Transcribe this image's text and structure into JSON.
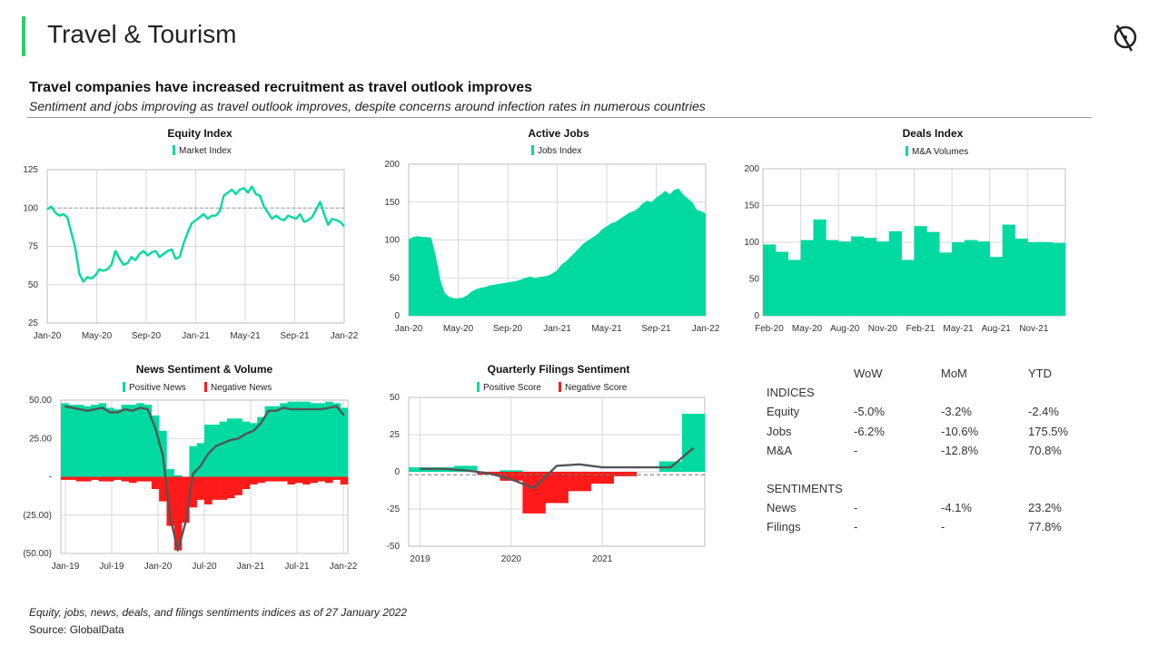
{
  "header": {
    "title": "Travel & Tourism",
    "headline": "Travel companies have increased recruitment as travel outlook improves",
    "subheadline": "Sentiment and jobs improving as travel outlook improves, despite concerns around infection rates in numerous countries"
  },
  "colors": {
    "accent": "#2ecc71",
    "positive": "#00d9a0",
    "negative": "#ff1a1a",
    "line": "#555555",
    "grid": "#d9d9d9"
  },
  "chart_data": [
    {
      "id": "equity",
      "type": "line",
      "title": "Equity Index",
      "legend": [
        "Market Index"
      ],
      "ylim": [
        25,
        125
      ],
      "yticks": [
        "125",
        "100",
        "75",
        "50",
        "25"
      ],
      "xticks": [
        "Jan-20",
        "May-20",
        "Sep-20",
        "Jan-21",
        "May-21",
        "Sep-21",
        "Jan-22"
      ],
      "reference_line": 100,
      "x_range": [
        "Jan-20",
        "Jan-22"
      ],
      "values": [
        99,
        101,
        97,
        95,
        96,
        94,
        84,
        74,
        57,
        52,
        55,
        54,
        56,
        60,
        59,
        60,
        63,
        72,
        67,
        63,
        64,
        68,
        66,
        70,
        72,
        69,
        71,
        72,
        68,
        70,
        72,
        73,
        67,
        68,
        77,
        84,
        90,
        92,
        94,
        96,
        93,
        95,
        95,
        98,
        108,
        110,
        112,
        109,
        112,
        113,
        110,
        114,
        109,
        108,
        101,
        97,
        93,
        95,
        93,
        92,
        95,
        94,
        93,
        96,
        91,
        92,
        94,
        99,
        104,
        96,
        89,
        93,
        92,
        91,
        88
      ]
    },
    {
      "id": "jobs",
      "type": "area",
      "title": "Active Jobs",
      "legend": [
        "Jobs Index"
      ],
      "ylim": [
        0,
        200
      ],
      "yticks": [
        "200",
        "150",
        "100",
        "50",
        "0"
      ],
      "xticks": [
        "Jan-20",
        "May-20",
        "Sep-20",
        "Jan-21",
        "May-21",
        "Sep-21",
        "Jan-22"
      ],
      "x_range": [
        "Jan-20",
        "Jan-22"
      ],
      "values": [
        101,
        104,
        105,
        104,
        104,
        103,
        80,
        48,
        30,
        25,
        23,
        23,
        24,
        27,
        32,
        35,
        37,
        38,
        40,
        41,
        42,
        43,
        44,
        45,
        46,
        48,
        50,
        52,
        50,
        51,
        52,
        53,
        56,
        60,
        68,
        72,
        78,
        84,
        90,
        96,
        100,
        104,
        108,
        114,
        118,
        122,
        124,
        128,
        132,
        136,
        138,
        142,
        148,
        152,
        150,
        156,
        160,
        165,
        160,
        166,
        168,
        160,
        155,
        150,
        140,
        138,
        135
      ]
    },
    {
      "id": "deals",
      "type": "bar",
      "title": "Deals Index",
      "legend": [
        "M&A Volumes"
      ],
      "ylim": [
        0,
        200
      ],
      "yticks": [
        "200",
        "150",
        "100",
        "50",
        "0"
      ],
      "categories": [
        "Feb-20",
        "Mar-20",
        "Apr-20",
        "May-20",
        "Jun-20",
        "Jul-20",
        "Aug-20",
        "Sep-20",
        "Oct-20",
        "Nov-20",
        "Dec-20",
        "Jan-21",
        "Feb-21",
        "Mar-21",
        "Apr-21",
        "May-21",
        "Jun-21",
        "Jul-21",
        "Aug-21",
        "Sep-21",
        "Oct-21",
        "Nov-21",
        "Dec-21",
        "Jan-22"
      ],
      "xtick_labels": [
        "Feb-20",
        "May-20",
        "Aug-20",
        "Nov-20",
        "Feb-21",
        "May-21",
        "Aug-21",
        "Nov-21"
      ],
      "values": [
        97,
        87,
        76,
        103,
        131,
        103,
        101,
        108,
        106,
        101,
        115,
        76,
        122,
        114,
        86,
        100,
        103,
        101,
        80,
        124,
        105,
        100,
        100,
        99
      ]
    },
    {
      "id": "news",
      "type": "bar",
      "title": "News Sentiment & Volume",
      "legend": [
        "Positive News",
        "Negative News"
      ],
      "ylim": [
        -50,
        50
      ],
      "yticks": [
        "50.00",
        "25.00",
        "-",
        "(25.00)",
        "(50.00)"
      ],
      "xticks": [
        "Jan-19",
        "Jul-19",
        "Jan-20",
        "Jul-20",
        "Jan-21",
        "Jul-21",
        "Jan-22"
      ],
      "x_range": [
        "Jan-19",
        "Jan-22"
      ],
      "series": [
        {
          "name": "Positive News",
          "values": [
            48,
            47,
            47,
            46,
            47,
            48,
            45,
            44,
            47,
            47,
            48,
            47,
            40,
            30,
            5,
            1,
            0,
            20,
            22,
            34,
            34,
            36,
            38,
            38,
            36,
            35,
            39,
            46,
            46,
            48,
            49,
            49,
            49,
            48,
            48,
            49,
            48,
            45
          ]
        },
        {
          "name": "Negative News",
          "values": [
            -2,
            -2,
            -3,
            -3,
            -2,
            -3,
            -3,
            -2,
            -3,
            -4,
            -3,
            -3,
            -8,
            -16,
            -32,
            -48,
            -30,
            -20,
            -15,
            -18,
            -15,
            -15,
            -14,
            -12,
            -8,
            -5,
            -4,
            -3,
            -3,
            -3,
            -5,
            -4,
            -5,
            -4,
            -3,
            -4,
            -2,
            -5
          ]
        }
      ],
      "line": [
        46,
        45,
        44,
        43,
        44,
        45,
        42,
        42,
        44,
        43,
        45,
        44,
        32,
        14,
        -27,
        -48,
        -30,
        2,
        7,
        15,
        20,
        22,
        24,
        25,
        28,
        30,
        35,
        43,
        43,
        45,
        44,
        44,
        44,
        44,
        44,
        45,
        46,
        40
      ]
    },
    {
      "id": "filings",
      "type": "bar",
      "title": "Quarterly Filings Sentiment",
      "legend": [
        "Positive Score",
        "Negative Score"
      ],
      "ylim": [
        -50,
        50
      ],
      "yticks": [
        "50",
        "25",
        "0",
        "-25",
        "-50"
      ],
      "xticks": [
        "2019",
        "2020",
        "2021"
      ],
      "reference_line": -2,
      "series": [
        {
          "name": "Positive Score",
          "values": [
            3,
            3,
            4,
            0,
            1,
            0,
            0,
            0,
            0,
            0,
            0,
            7,
            39
          ]
        },
        {
          "name": "Negative Score",
          "values": [
            0,
            0,
            0,
            -2,
            -6,
            -28,
            -21,
            -13,
            -8,
            -3,
            0,
            0,
            0
          ]
        }
      ],
      "line": [
        2,
        2,
        1,
        -1,
        -5,
        -11,
        4,
        5,
        3,
        3,
        3,
        3,
        16
      ]
    }
  ],
  "stats": {
    "columns": [
      "WoW",
      "MoM",
      "YTD"
    ],
    "indices_label": "INDICES",
    "sentiments_label": "SENTIMENTS",
    "indices": [
      {
        "name": "Equity",
        "wow": "-5.0%",
        "mom": "-3.2%",
        "ytd": "-2.4%"
      },
      {
        "name": "Jobs",
        "wow": "-6.2%",
        "mom": "-10.6%",
        "ytd": "175.5%"
      },
      {
        "name": "M&A",
        "wow": "-",
        "mom": "-12.8%",
        "ytd": "70.8%"
      }
    ],
    "sentiments": [
      {
        "name": "News",
        "wow": "-",
        "mom": "-4.1%",
        "ytd": "23.2%"
      },
      {
        "name": "Filings",
        "wow": "-",
        "mom": "-",
        "ytd": "77.8%"
      }
    ]
  },
  "footer": {
    "note": "Equity, jobs, news, deals, and filings sentiments indices as of 27 January 2022",
    "source": "Source: GlobalData"
  }
}
